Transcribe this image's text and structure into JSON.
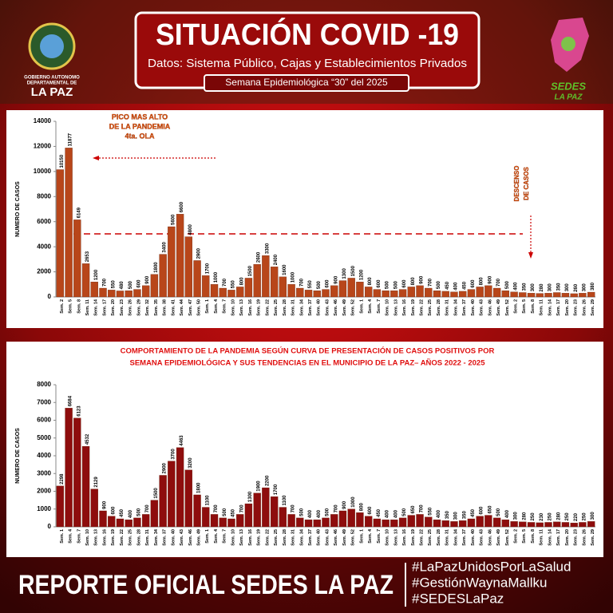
{
  "header": {
    "title": "SITUACIÓN COVID -19",
    "subtitle": "Datos: Sistema Público, Cajas y Establecimientos Privados",
    "week": "Semana  Epidemiológica “30” del  2025",
    "left_logo": [
      "GOBIERNO AUTONOMO",
      "DEPARTAMENTAL DE",
      "LA PAZ"
    ],
    "right_logo": [
      "SEDES",
      "LA PAZ"
    ]
  },
  "chart_data": [
    {
      "type": "bar",
      "y_label": "NUMERO DE CASOS",
      "annotations": [
        "PICO MAS ALTO",
        "DE LA PANDEMIA",
        "4ta.  OLA",
        "DESCENSO",
        "DE CASOS"
      ],
      "color": "#b8461a",
      "ylim": [
        0,
        14000
      ],
      "yticks": [
        0,
        2000,
        4000,
        6000,
        8000,
        10000,
        12000,
        14000
      ],
      "categories": [
        "Sem. 2",
        "Sem. 5",
        "Sem. 8",
        "Sem. 11",
        "Sem. 14",
        "Sem. 17",
        "Sem. 20",
        "Sem. 23",
        "Sem. 26",
        "Sem. 29",
        "Sem. 32",
        "Sem. 35",
        "Sem. 38",
        "Sem. 41",
        "Sem. 44",
        "Sem. 47",
        "Sem. 50",
        "Sem. 1",
        "Sem. 4",
        "Sem. 7",
        "Sem. 10",
        "Sem. 13",
        "Sem. 16",
        "Sem. 19",
        "Sem. 22",
        "Sem. 25",
        "Sem. 28",
        "Sem. 31",
        "Sem. 34",
        "Sem. 37",
        "Sem. 40",
        "Sem. 43",
        "Sem. 46",
        "Sem. 49",
        "Sem. 52",
        "Sem. 1",
        "Sem. 4",
        "Sem. 7",
        "Sem. 10",
        "Sem. 13",
        "Sem. 16",
        "Sem. 19",
        "Sem. 22",
        "Sem. 25",
        "Sem. 28",
        "Sem. 31",
        "Sem. 34",
        "Sem. 37",
        "Sem. 40",
        "Sem. 43",
        "Sem. 46",
        "Sem. 49",
        "Sem. 52",
        "Sem. 2",
        "Sem. 5",
        "Sem. 8",
        "Sem. 11",
        "Sem. 14",
        "Sem. 17",
        "Sem. 20",
        "Sem. 23",
        "Sem. 26",
        "Sem. 29"
      ],
      "values": [
        10150,
        11877,
        6149,
        2653,
        1200,
        700,
        550,
        480,
        500,
        600,
        900,
        1800,
        3400,
        5600,
        6600,
        4800,
        2900,
        1700,
        1000,
        700,
        550,
        800,
        1500,
        2600,
        3300,
        2400,
        1600,
        1000,
        700,
        550,
        500,
        600,
        900,
        1300,
        1500,
        1200,
        800,
        600,
        500,
        500,
        600,
        800,
        900,
        700,
        500,
        450,
        400,
        450,
        600,
        800,
        900,
        700,
        500,
        400,
        350,
        300,
        280,
        300,
        350,
        300,
        260,
        300,
        380
      ]
    },
    {
      "type": "bar",
      "title": [
        "COMPORTAMIENTO DE LA PANDEMIA SEGÚN CURVA DE PRESENTACIÓN DE CASOS POSITIVOS POR",
        "SEMANA EPIDEMIOLÓGICA Y SUS TENDENCIAS EN EL MUNICIPIO DE LA PAZ– AÑOS 2022 - 2025"
      ],
      "y_label": "NUMERO DE CASOS",
      "color": "#8e0d0d",
      "ylim": [
        0,
        8000
      ],
      "yticks": [
        0,
        1000,
        2000,
        3000,
        4000,
        5000,
        6000,
        7000,
        8000
      ],
      "categories": [
        "Sem. 1",
        "Sem. 4",
        "Sem. 7",
        "Sem. 10",
        "Sem. 13",
        "Sem. 16",
        "Sem. 19",
        "Sem. 22",
        "Sem. 25",
        "Sem. 28",
        "Sem. 31",
        "Sem. 34",
        "Sem. 37",
        "Sem. 40",
        "Sem. 43",
        "Sem. 46",
        "Sem. 49",
        "Sem. 1",
        "Sem. 4",
        "Sem. 7",
        "Sem. 10",
        "Sem. 13",
        "Sem. 16",
        "Sem. 19",
        "Sem. 22",
        "Sem. 25",
        "Sem. 28",
        "Sem. 31",
        "Sem. 34",
        "Sem. 37",
        "Sem. 40",
        "Sem. 43",
        "Sem. 46",
        "Sem. 49",
        "Sem. 52",
        "Sem. 1",
        "Sem. 4",
        "Sem. 7",
        "Sem. 10",
        "Sem. 13",
        "Sem. 16",
        "Sem. 19",
        "Sem. 22",
        "Sem. 25",
        "Sem. 28",
        "Sem. 31",
        "Sem. 34",
        "Sem. 37",
        "Sem. 40",
        "Sem. 43",
        "Sem. 46",
        "Sem. 49",
        "Sem. 52",
        "Sem. 2",
        "Sem. 5",
        "Sem. 8",
        "Sem. 11",
        "Sem. 14",
        "Sem. 17",
        "Sem. 20",
        "Sem. 23",
        "Sem. 26",
        "Sem. 29"
      ],
      "values": [
        2298,
        6684,
        6123,
        4532,
        2129,
        900,
        600,
        450,
        400,
        500,
        700,
        1500,
        2900,
        3700,
        4463,
        3200,
        1800,
        1100,
        700,
        500,
        450,
        700,
        1300,
        1900,
        2200,
        1700,
        1100,
        700,
        500,
        400,
        400,
        500,
        700,
        900,
        1000,
        800,
        600,
        450,
        400,
        400,
        500,
        650,
        700,
        550,
        400,
        350,
        300,
        350,
        450,
        600,
        650,
        500,
        400,
        300,
        280,
        250,
        230,
        250,
        280,
        250,
        220,
        250,
        300
      ]
    }
  ],
  "footer": {
    "title": "REPORTE OFICIAL SEDES LA PAZ",
    "hashtags": [
      "#LaPazUnidosPorLaSalud",
      "#GestiónWaynaMallku",
      "#SEDESLaPaz"
    ]
  }
}
